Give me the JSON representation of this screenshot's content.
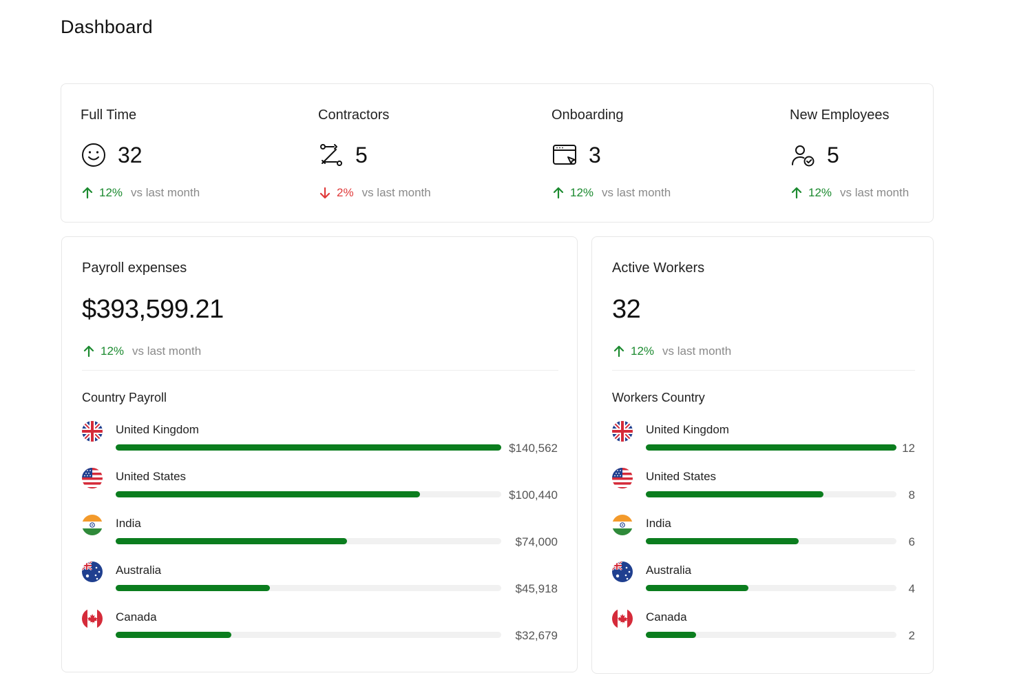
{
  "page": {
    "title": "Dashboard"
  },
  "stats": [
    {
      "label": "Full Time",
      "value": "32",
      "icon": "smile-icon",
      "trend": {
        "direction": "up",
        "percent": "12%",
        "text": "vs last month"
      }
    },
    {
      "label": "Contractors",
      "value": "5",
      "icon": "route-icon",
      "trend": {
        "direction": "down",
        "percent": "2%",
        "text": "vs last month"
      }
    },
    {
      "label": "Onboarding",
      "value": "3",
      "icon": "browser-cursor-icon",
      "trend": {
        "direction": "up",
        "percent": "12%",
        "text": "vs last month"
      }
    },
    {
      "label": "New Employees",
      "value": "5",
      "icon": "user-check-icon",
      "trend": {
        "direction": "up",
        "percent": "12%",
        "text": "vs last month"
      }
    }
  ],
  "payroll": {
    "title": "Payroll expenses",
    "total": "$393,599.21",
    "trend": {
      "direction": "up",
      "percent": "12%",
      "text": "vs last month"
    },
    "section_title": "Country Payroll",
    "rows": [
      {
        "country": "United Kingdom",
        "flag": "uk-flag-icon",
        "value": "$140,562",
        "fraction": 1.0
      },
      {
        "country": "United States",
        "flag": "us-flag-icon",
        "value": "$100,440",
        "fraction": 0.79
      },
      {
        "country": "India",
        "flag": "india-flag-icon",
        "value": "$74,000",
        "fraction": 0.6
      },
      {
        "country": "Australia",
        "flag": "australia-flag-icon",
        "value": "$45,918",
        "fraction": 0.4
      },
      {
        "country": "Canada",
        "flag": "canada-flag-icon",
        "value": "$32,679",
        "fraction": 0.3
      }
    ]
  },
  "workers": {
    "title": "Active Workers",
    "total": "32",
    "trend": {
      "direction": "up",
      "percent": "12%",
      "text": "vs last month"
    },
    "section_title": "Workers Country",
    "rows": [
      {
        "country": "United Kingdom",
        "flag": "uk-flag-icon",
        "value": "12",
        "fraction": 1.0
      },
      {
        "country": "United States",
        "flag": "us-flag-icon",
        "value": "8",
        "fraction": 0.71
      },
      {
        "country": "India",
        "flag": "india-flag-icon",
        "value": "6",
        "fraction": 0.61
      },
      {
        "country": "Australia",
        "flag": "australia-flag-icon",
        "value": "4",
        "fraction": 0.41
      },
      {
        "country": "Canada",
        "flag": "canada-flag-icon",
        "value": "2",
        "fraction": 0.2
      }
    ]
  },
  "colors": {
    "bar": "#0b7d1e",
    "up": "#1b8a2f",
    "down": "#e03a3a",
    "muted": "#8a8a8a",
    "border": "#e7e7e7"
  }
}
